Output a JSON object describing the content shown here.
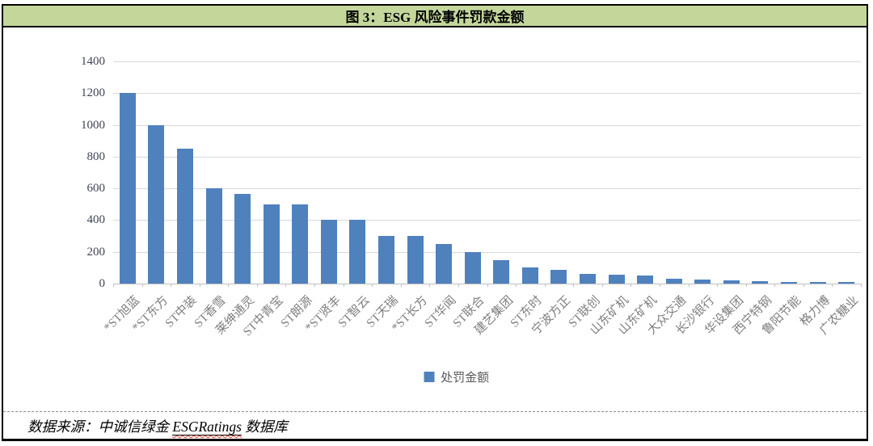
{
  "title_bar": {
    "text": "图 3：ESG 风险事件罚款金额"
  },
  "legend": {
    "label": "处罚金额",
    "marker_color": "#4F81BD",
    "marker_icon": "square-icon"
  },
  "footer": {
    "prefix": "数据来源：中诚信绿金 ",
    "highlight": "ESGRatings",
    "suffix": " 数据库"
  },
  "colors": {
    "title_band_bg": "#C4D79B",
    "bar": "#4F81BD",
    "gridline": "#D9D9D9",
    "axis_line": "#BFBFBF",
    "y_tick_text": "#3E4355",
    "x_tick_text": "#7F7F7F",
    "legend_text": "#595959",
    "border": "#000000"
  },
  "chart_data": {
    "type": "bar",
    "title": "图 3：ESG 风险事件罚款金额",
    "series_name": "处罚金额",
    "categories": [
      "*ST旭蓝",
      "*ST东方",
      "ST中装",
      "ST香雪",
      "莱绅通灵",
      "ST中青宝",
      "ST朗源",
      "*ST贤丰",
      "ST智云",
      "ST天瑞",
      "*ST长方",
      "ST华闻",
      "ST联合",
      "建艺集团",
      "ST东时",
      "宁波方正",
      "ST联创",
      "山东矿机",
      "山东矿机",
      "大众交通",
      "长沙银行",
      "华设集团",
      "西宁特钢",
      "鲁阳节能",
      "格力博",
      "广农糖业"
    ],
    "values": [
      1200,
      1000,
      850,
      600,
      565,
      500,
      500,
      400,
      400,
      300,
      300,
      250,
      200,
      150,
      100,
      85,
      60,
      55,
      50,
      30,
      25,
      20,
      15,
      10,
      10,
      10
    ],
    "xlabel": "",
    "ylabel": "",
    "ylim": [
      0,
      1400
    ],
    "yticks": [
      0,
      200,
      400,
      600,
      800,
      1000,
      1200,
      1400
    ],
    "ytick_labels": [
      "0",
      "200",
      "400",
      "600",
      "800",
      "1000",
      "1200",
      "1400"
    ],
    "grid": true,
    "x_label_rotation_deg": 45,
    "legend_position": "bottom"
  }
}
